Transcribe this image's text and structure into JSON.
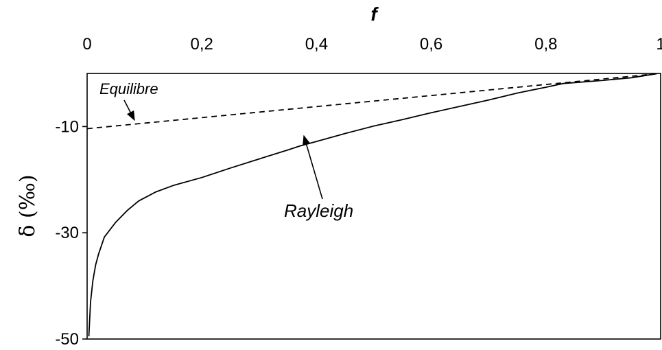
{
  "chart_data": {
    "type": "line",
    "xlabel": "f",
    "ylabel": "δ (‰)",
    "x_axis_position": "top",
    "xlim": [
      0,
      1
    ],
    "ylim": [
      -50,
      0
    ],
    "x_ticks": [
      "0",
      "0,2",
      "0,4",
      "0,6",
      "0,8",
      "1"
    ],
    "x_tick_values": [
      0,
      0.2,
      0.4,
      0.6,
      0.8,
      1
    ],
    "y_ticks": [
      "-10",
      "-30",
      "-50"
    ],
    "y_tick_values": [
      -10,
      -30,
      -50
    ],
    "grid": false,
    "series": [
      {
        "name": "Equilibre",
        "style": "dashed",
        "x": [
          0,
          1
        ],
        "y": [
          -10.4,
          0
        ]
      },
      {
        "name": "Rayleigh",
        "style": "solid",
        "x": [
          0.003,
          0.006,
          0.01,
          0.015,
          0.02,
          0.03,
          0.05,
          0.07,
          0.09,
          0.12,
          0.15,
          0.2,
          0.25,
          0.3,
          0.35,
          0.37,
          0.4,
          0.45,
          0.5,
          0.55,
          0.6,
          0.65,
          0.7,
          0.75,
          0.8,
          0.83,
          0.9,
          0.95,
          0.99
        ],
        "y": [
          -49.5,
          -43,
          -39,
          -36,
          -34,
          -30.8,
          -28,
          -25.8,
          -24,
          -22.3,
          -21.1,
          -19.6,
          -17.8,
          -16.1,
          -14.4,
          -13.7,
          -12.8,
          -11.3,
          -9.9,
          -8.7,
          -7.4,
          -6.2,
          -5.0,
          -3.7,
          -2.6,
          -1.9,
          -1.3,
          -0.8,
          -0.1
        ]
      }
    ],
    "annotations": [
      {
        "text": "Equilibre",
        "points_to": "Equilibre"
      },
      {
        "text": "Rayleigh",
        "points_to": "Rayleigh"
      }
    ]
  }
}
